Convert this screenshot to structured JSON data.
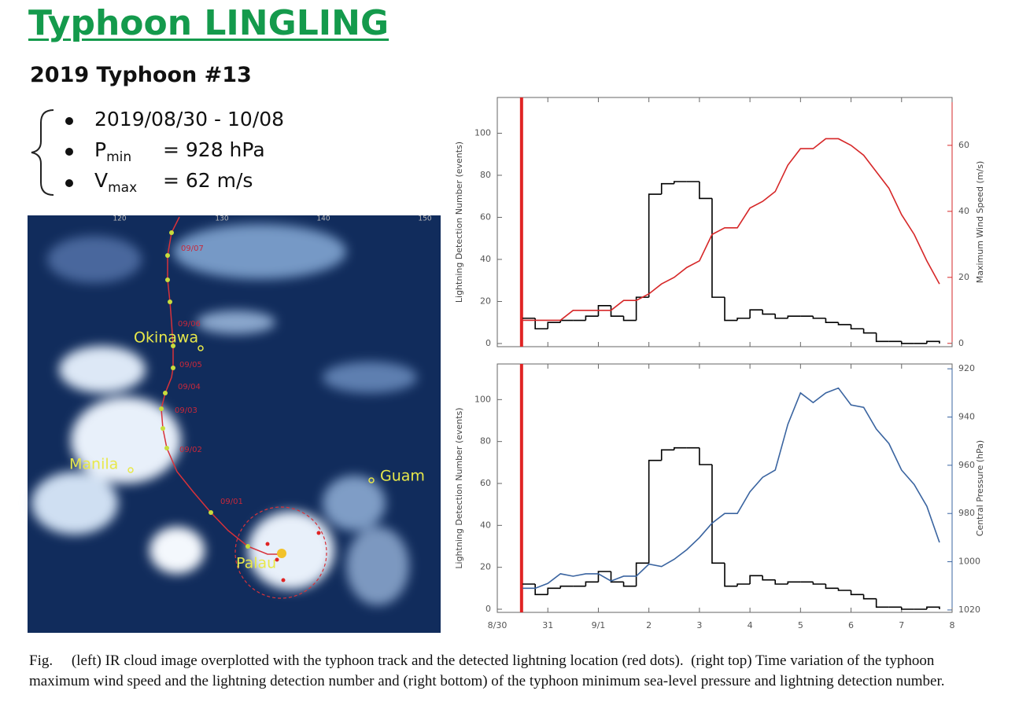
{
  "header": {
    "title": "Typhoon LINGLING",
    "subtitle": "2019 Typhoon #13"
  },
  "bullets": [
    {
      "text": "2019/08/30 - 10/08"
    },
    {
      "symbol": "P",
      "sub": "min",
      "text": "= 928 hPa"
    },
    {
      "symbol": "V",
      "sub": "max",
      "text": "= 62 m/s"
    }
  ],
  "map": {
    "lon": [
      "120",
      "130",
      "140",
      "150"
    ],
    "places": [
      "Okinawa",
      "Manila",
      "Guam",
      "Palau"
    ],
    "dates": [
      "09/07",
      "09/06",
      "09/05",
      "09/04",
      "09/03",
      "09/02",
      "09/01"
    ]
  },
  "chart_data": [
    {
      "type": "histogram",
      "ylabel": "Lightning Detection Number (events)",
      "y2label": "Maximum Wind Speed (m/s)",
      "xlim": [
        0,
        9
      ],
      "xticks": [
        0,
        1,
        2,
        3,
        4,
        5,
        6,
        7,
        8,
        9
      ],
      "ylim": [
        -1.5,
        117
      ],
      "yticks": [
        0,
        20,
        40,
        60,
        80,
        100
      ],
      "y2lim": [
        -1,
        74.5
      ],
      "y2ticks": [
        0,
        20,
        40,
        60
      ],
      "y2color": "#d62728",
      "vline": {
        "x": 0.48,
        "color": "#e02424"
      },
      "color": "#000000",
      "bins": [
        0.5,
        0.75,
        1,
        1.25,
        1.5,
        1.75,
        2,
        2.25,
        2.5,
        2.75,
        3,
        3.25,
        3.5,
        3.75,
        4,
        4.25,
        4.5,
        4.75,
        5,
        5.25,
        5.5,
        5.75,
        6,
        6.25,
        6.5,
        6.75,
        7,
        7.25,
        7.5,
        7.75,
        8,
        8.25,
        8.5,
        8.75
      ],
      "values": [
        12,
        7,
        10,
        11,
        11,
        13,
        18,
        13,
        11,
        22,
        71,
        76,
        77,
        77,
        69,
        22,
        11,
        12,
        16,
        14,
        12,
        13,
        13,
        12,
        10,
        9,
        7,
        5,
        1,
        1,
        0,
        0,
        1
      ],
      "series": [
        {
          "color": "#d62728",
          "axis": "y2",
          "x": [
            0.5,
            0.75,
            1,
            1.25,
            1.5,
            1.75,
            2,
            2.25,
            2.5,
            2.75,
            3,
            3.25,
            3.5,
            3.75,
            4,
            4.25,
            4.5,
            4.75,
            5,
            5.25,
            5.5,
            5.75,
            6,
            6.25,
            6.5,
            6.75,
            7,
            7.25,
            7.5,
            7.75,
            8,
            8.25,
            8.5,
            8.75
          ],
          "values": [
            7,
            7,
            7,
            7,
            10,
            10,
            10,
            10,
            13,
            13,
            15,
            18,
            20,
            23,
            25,
            33,
            35,
            35,
            41,
            43,
            46,
            54,
            59,
            59,
            62,
            62,
            60,
            57,
            52,
            47,
            39,
            33,
            25,
            18
          ]
        }
      ]
    },
    {
      "type": "histogram",
      "ylabel": "Lightning Detection Number (events)",
      "y2label": "Central Pressure (hPa)",
      "xlim": [
        0,
        9
      ],
      "xticks": [
        {
          "value": 0,
          "label": "8/30"
        },
        {
          "value": 1,
          "label": "31"
        },
        {
          "value": 2,
          "label": "9/1"
        },
        {
          "value": 3,
          "label": "2"
        },
        {
          "value": 4,
          "label": "3"
        },
        {
          "value": 5,
          "label": "4"
        },
        {
          "value": 6,
          "label": "5"
        },
        {
          "value": 7,
          "label": "6"
        },
        {
          "value": 8,
          "label": "7"
        },
        {
          "value": 9,
          "label": "8"
        }
      ],
      "ylim": [
        -1.5,
        117
      ],
      "yticks": [
        0,
        20,
        40,
        60,
        80,
        100
      ],
      "y2lim": [
        1021,
        918
      ],
      "y2ticks": [
        920,
        940,
        960,
        980,
        1000,
        1020
      ],
      "y2color": "#3a64a0",
      "vline": {
        "x": 0.48,
        "color": "#e02424"
      },
      "color": "#000000",
      "bins": [
        0.5,
        0.75,
        1,
        1.25,
        1.5,
        1.75,
        2,
        2.25,
        2.5,
        2.75,
        3,
        3.25,
        3.5,
        3.75,
        4,
        4.25,
        4.5,
        4.75,
        5,
        5.25,
        5.5,
        5.75,
        6,
        6.25,
        6.5,
        6.75,
        7,
        7.25,
        7.5,
        7.75,
        8,
        8.25,
        8.5,
        8.75
      ],
      "values": [
        12,
        7,
        10,
        11,
        11,
        13,
        18,
        13,
        11,
        22,
        71,
        76,
        77,
        77,
        69,
        22,
        11,
        12,
        16,
        14,
        12,
        13,
        13,
        12,
        10,
        9,
        7,
        5,
        1,
        1,
        0,
        0,
        1
      ],
      "series": [
        {
          "color": "#3a64a0",
          "axis": "y2",
          "x": [
            0.5,
            0.75,
            1,
            1.25,
            1.5,
            1.75,
            2,
            2.25,
            2.5,
            2.75,
            3,
            3.25,
            3.5,
            3.75,
            4,
            4.25,
            4.5,
            4.75,
            5,
            5.25,
            5.5,
            5.75,
            6,
            6.25,
            6.5,
            6.75,
            7,
            7.25,
            7.5,
            7.75,
            8,
            8.25,
            8.5,
            8.75
          ],
          "values": [
            1011,
            1011,
            1009,
            1005,
            1006,
            1005,
            1005,
            1008,
            1006,
            1006,
            1001,
            1002,
            999,
            995,
            990,
            984,
            980,
            980,
            971,
            965,
            962,
            943,
            930,
            934,
            930,
            928,
            935,
            936,
            945,
            951,
            962,
            968,
            977,
            992
          ]
        }
      ]
    }
  ],
  "caption": "Fig.     (left) IR cloud image overplotted with the typhoon track and the detected lightning location (red dots).  (right top) Time variation of the typhoon maximum wind speed and the lightning detection number and (right bottom) of the typhoon minimum sea-level pressure and lightning detection number."
}
